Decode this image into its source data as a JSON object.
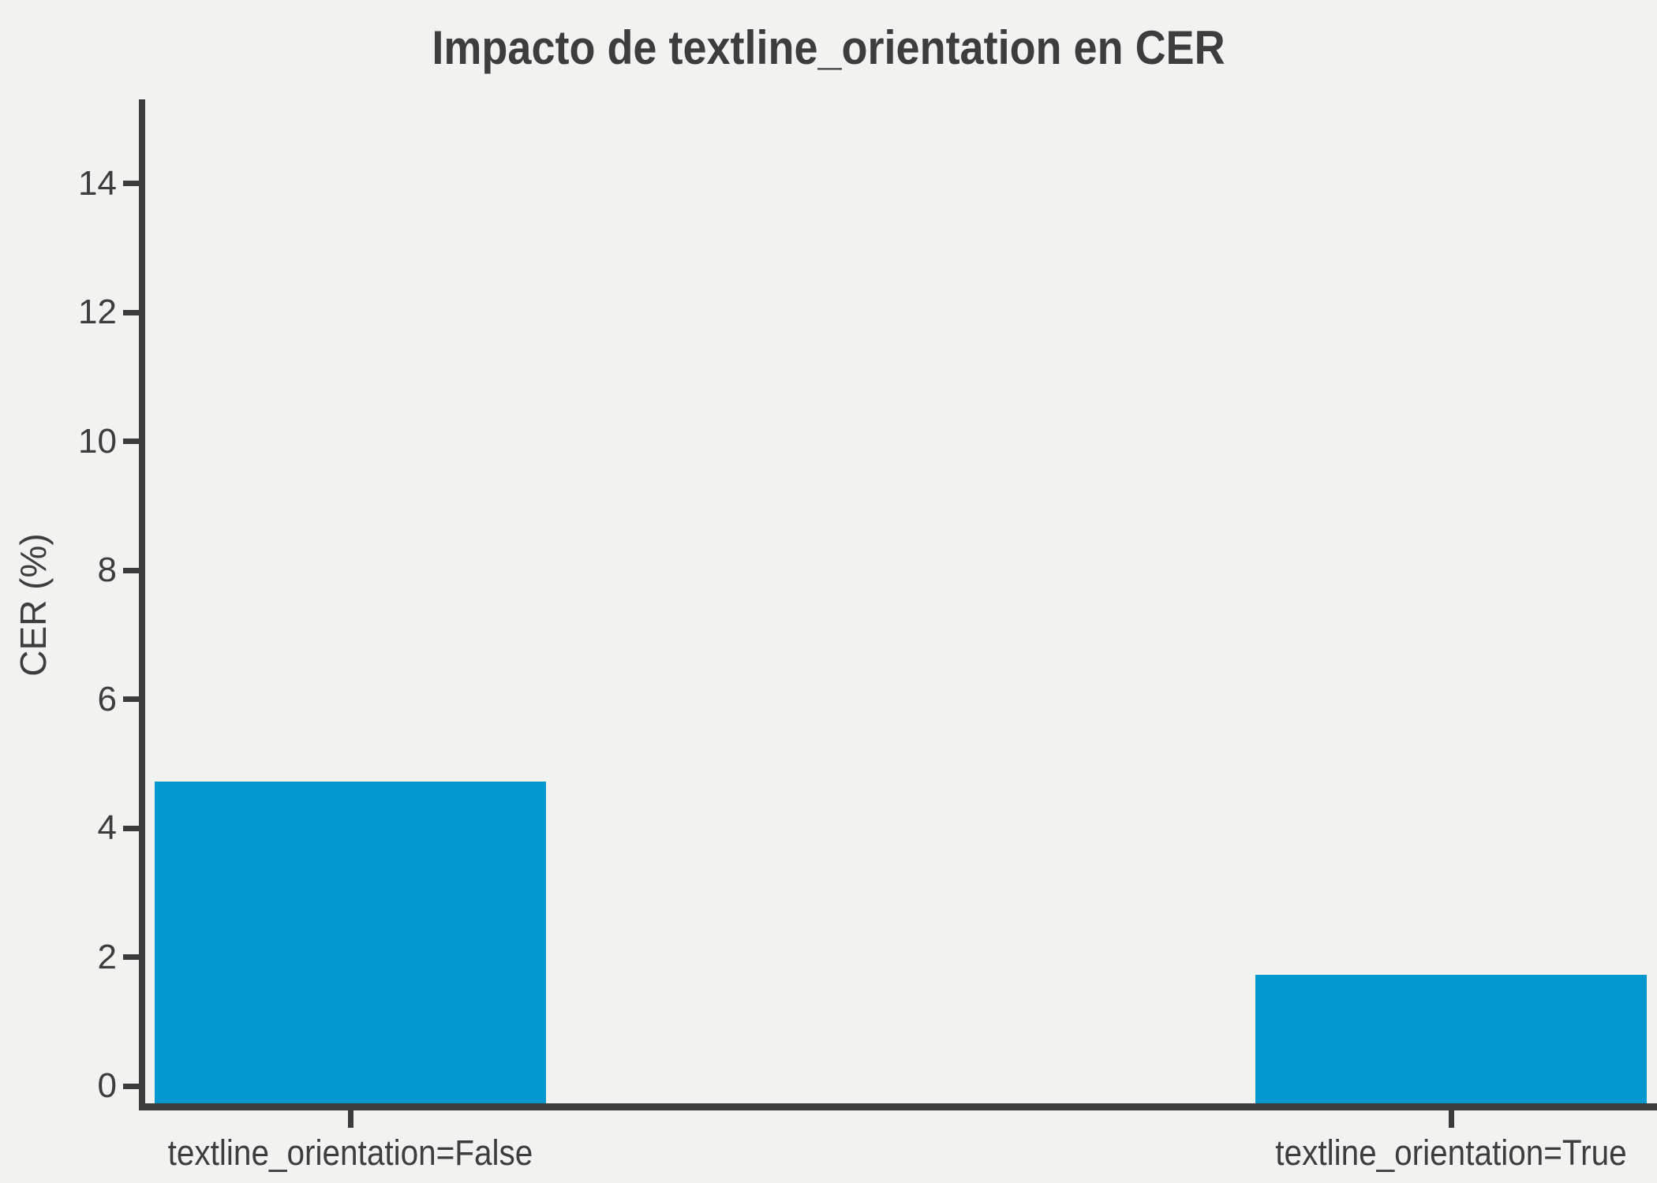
{
  "chart_data": {
    "type": "bar",
    "title": "Impacto de textline_orientation en CER",
    "xlabel": "",
    "ylabel": "CER (%)",
    "categories": [
      "textline_orientation=False",
      "textline_orientation=True"
    ],
    "values": [
      4.72,
      1.72
    ],
    "yticks": [
      0,
      2,
      4,
      6,
      8,
      10,
      12,
      14
    ],
    "ylim": [
      -0.3,
      15.3
    ],
    "grid": false,
    "legend": null,
    "bar_color": "#0598ce"
  },
  "colors": {
    "background": "#f2f2f1",
    "bar": "#0598ce",
    "spine": "#3b3b3b",
    "text": "#3d3d3d"
  }
}
